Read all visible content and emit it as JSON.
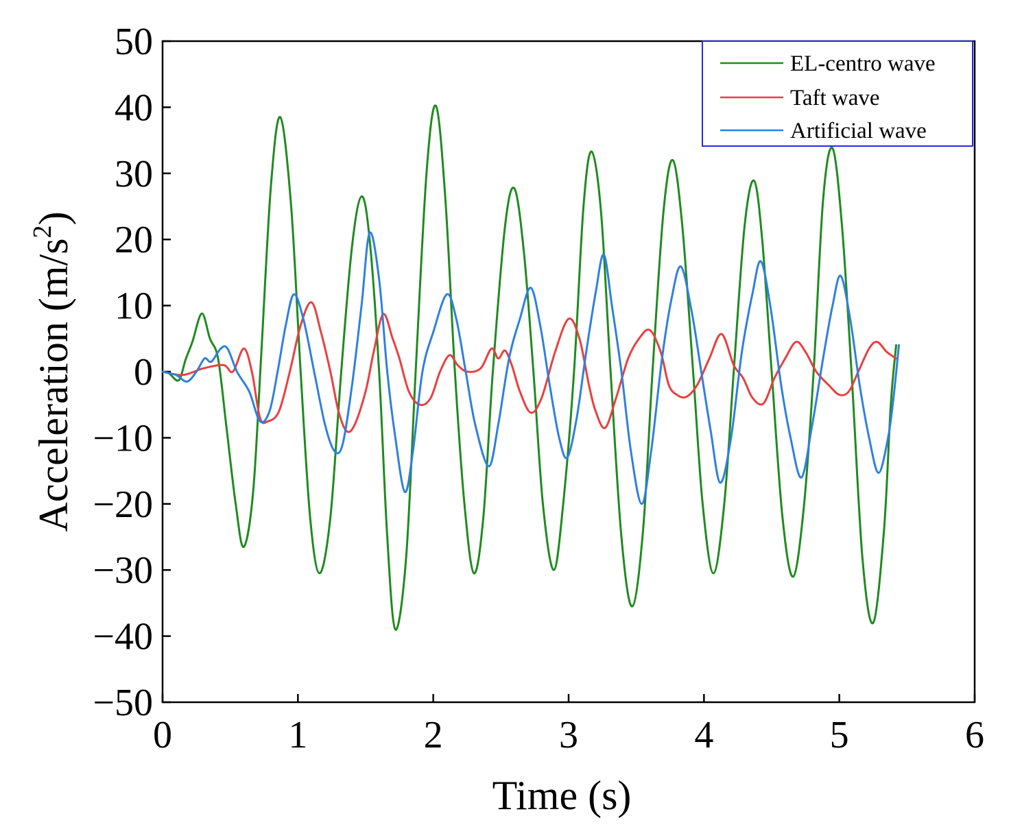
{
  "chart_data": {
    "type": "line",
    "title": "",
    "xlabel": "Time (s)",
    "ylabel_main": "Acceleration (m/s",
    "ylabel_sup": "2",
    "ylabel_close": ")",
    "xlim": [
      0,
      6
    ],
    "ylim": [
      -50,
      50
    ],
    "xticks": [
      0,
      1,
      2,
      3,
      4,
      5,
      6
    ],
    "yticks": [
      -50,
      -40,
      -30,
      -20,
      -10,
      0,
      10,
      20,
      30,
      40,
      50
    ],
    "grid": false,
    "legend_position": "top-right",
    "series": [
      {
        "name": "EL-centro wave",
        "color": "#1f8a1f",
        "points": [
          [
            0,
            0
          ],
          [
            0.05,
            -0.3
          ],
          [
            0.12,
            -1.3
          ],
          [
            0.17,
            1.8
          ],
          [
            0.22,
            4.5
          ],
          [
            0.29,
            8.8
          ],
          [
            0.35,
            5
          ],
          [
            0.41,
            2
          ],
          [
            0.47,
            -8
          ],
          [
            0.54,
            -20
          ],
          [
            0.6,
            -26.5
          ],
          [
            0.67,
            -18
          ],
          [
            0.73,
            3
          ],
          [
            0.8,
            28
          ],
          [
            0.87,
            38.5
          ],
          [
            0.95,
            25
          ],
          [
            1.02,
            0
          ],
          [
            1.09,
            -22
          ],
          [
            1.16,
            -30.5
          ],
          [
            1.24,
            -22
          ],
          [
            1.32,
            0
          ],
          [
            1.4,
            19
          ],
          [
            1.47,
            26.5
          ],
          [
            1.53,
            20
          ],
          [
            1.6,
            0
          ],
          [
            1.66,
            -25
          ],
          [
            1.72,
            -39
          ],
          [
            1.8,
            -28
          ],
          [
            1.87,
            0
          ],
          [
            1.95,
            30
          ],
          [
            2.02,
            40.2
          ],
          [
            2.09,
            26
          ],
          [
            2.16,
            0
          ],
          [
            2.23,
            -20
          ],
          [
            2.3,
            -30.5
          ],
          [
            2.37,
            -22
          ],
          [
            2.44,
            0
          ],
          [
            2.53,
            22
          ],
          [
            2.6,
            27.7
          ],
          [
            2.67,
            18
          ],
          [
            2.74,
            0
          ],
          [
            2.81,
            -20
          ],
          [
            2.89,
            -30
          ],
          [
            2.96,
            -20
          ],
          [
            3.04,
            0
          ],
          [
            3.11,
            25
          ],
          [
            3.17,
            33.3
          ],
          [
            3.24,
            24
          ],
          [
            3.31,
            0
          ],
          [
            3.39,
            -25
          ],
          [
            3.47,
            -35.5
          ],
          [
            3.55,
            -24
          ],
          [
            3.62,
            0
          ],
          [
            3.7,
            24
          ],
          [
            3.77,
            32
          ],
          [
            3.84,
            22
          ],
          [
            3.92,
            0
          ],
          [
            3.99,
            -20
          ],
          [
            4.07,
            -30.5
          ],
          [
            4.15,
            -20
          ],
          [
            4.22,
            0
          ],
          [
            4.3,
            22
          ],
          [
            4.37,
            28.9
          ],
          [
            4.43,
            20
          ],
          [
            4.5,
            0
          ],
          [
            4.58,
            -22
          ],
          [
            4.66,
            -31
          ],
          [
            4.74,
            -20
          ],
          [
            4.81,
            0
          ],
          [
            4.88,
            26
          ],
          [
            4.95,
            33.8
          ],
          [
            5.02,
            22
          ],
          [
            5.09,
            0
          ],
          [
            5.17,
            -28
          ],
          [
            5.25,
            -38
          ],
          [
            5.33,
            -24
          ],
          [
            5.38,
            -5
          ],
          [
            5.42,
            4
          ]
        ]
      },
      {
        "name": "Taft wave",
        "color": "#e8403f",
        "points": [
          [
            0,
            0
          ],
          [
            0.15,
            -0.5
          ],
          [
            0.3,
            0.5
          ],
          [
            0.45,
            1
          ],
          [
            0.52,
            0
          ],
          [
            0.6,
            3.5
          ],
          [
            0.66,
            0
          ],
          [
            0.72,
            -7
          ],
          [
            0.78,
            -7.5
          ],
          [
            0.86,
            -6
          ],
          [
            0.94,
            0
          ],
          [
            1.02,
            7
          ],
          [
            1.1,
            10.5
          ],
          [
            1.17,
            6
          ],
          [
            1.24,
            0
          ],
          [
            1.3,
            -6
          ],
          [
            1.36,
            -9
          ],
          [
            1.42,
            -8
          ],
          [
            1.5,
            -3
          ],
          [
            1.56,
            3
          ],
          [
            1.63,
            8.7
          ],
          [
            1.7,
            5
          ],
          [
            1.75,
            2
          ],
          [
            1.82,
            -3
          ],
          [
            1.9,
            -5
          ],
          [
            1.98,
            -4
          ],
          [
            2.05,
            0
          ],
          [
            2.12,
            2.5
          ],
          [
            2.18,
            1
          ],
          [
            2.25,
            0
          ],
          [
            2.35,
            0.5
          ],
          [
            2.43,
            3.5
          ],
          [
            2.48,
            2
          ],
          [
            2.53,
            3.2
          ],
          [
            2.58,
            1
          ],
          [
            2.64,
            -3
          ],
          [
            2.72,
            -6.2
          ],
          [
            2.8,
            -4
          ],
          [
            2.9,
            3
          ],
          [
            3.0,
            8
          ],
          [
            3.08,
            5
          ],
          [
            3.15,
            -2
          ],
          [
            3.2,
            -6
          ],
          [
            3.27,
            -8.5
          ],
          [
            3.35,
            -4
          ],
          [
            3.44,
            2
          ],
          [
            3.52,
            5
          ],
          [
            3.6,
            6.3
          ],
          [
            3.68,
            3
          ],
          [
            3.74,
            -2
          ],
          [
            3.8,
            -3.5
          ],
          [
            3.87,
            -3.8
          ],
          [
            3.95,
            -2
          ],
          [
            4.04,
            2
          ],
          [
            4.13,
            5.7
          ],
          [
            4.22,
            1
          ],
          [
            4.29,
            -1
          ],
          [
            4.36,
            -4
          ],
          [
            4.44,
            -4.8
          ],
          [
            4.52,
            -1
          ],
          [
            4.6,
            2
          ],
          [
            4.68,
            4.5
          ],
          [
            4.75,
            3
          ],
          [
            4.83,
            0
          ],
          [
            4.92,
            -2
          ],
          [
            5.0,
            -3.5
          ],
          [
            5.07,
            -3
          ],
          [
            5.14,
            0
          ],
          [
            5.22,
            3.5
          ],
          [
            5.28,
            4.5
          ],
          [
            5.35,
            3
          ],
          [
            5.42,
            2
          ]
        ]
      },
      {
        "name": "Artificial wave",
        "color": "#2f7fe0",
        "points": [
          [
            0,
            0
          ],
          [
            0.1,
            -0.5
          ],
          [
            0.18,
            -1.5
          ],
          [
            0.25,
            0
          ],
          [
            0.31,
            2
          ],
          [
            0.36,
            1.5
          ],
          [
            0.43,
            3.5
          ],
          [
            0.48,
            3.5
          ],
          [
            0.55,
            0
          ],
          [
            0.64,
            -3
          ],
          [
            0.72,
            -7.5
          ],
          [
            0.79,
            -6
          ],
          [
            0.85,
            0
          ],
          [
            0.91,
            7
          ],
          [
            0.97,
            11.7
          ],
          [
            1.04,
            8
          ],
          [
            1.12,
            0
          ],
          [
            1.2,
            -8
          ],
          [
            1.27,
            -12
          ],
          [
            1.33,
            -11
          ],
          [
            1.4,
            -2
          ],
          [
            1.47,
            10
          ],
          [
            1.53,
            21
          ],
          [
            1.6,
            14
          ],
          [
            1.66,
            0
          ],
          [
            1.72,
            -10
          ],
          [
            1.79,
            -18.2
          ],
          [
            1.85,
            -12
          ],
          [
            1.92,
            0
          ],
          [
            2.0,
            6
          ],
          [
            2.1,
            11.7
          ],
          [
            2.17,
            8
          ],
          [
            2.24,
            0
          ],
          [
            2.31,
            -8
          ],
          [
            2.41,
            -14.3
          ],
          [
            2.48,
            -8
          ],
          [
            2.56,
            2
          ],
          [
            2.64,
            8
          ],
          [
            2.72,
            12.7
          ],
          [
            2.79,
            7
          ],
          [
            2.86,
            -2
          ],
          [
            2.93,
            -10
          ],
          [
            2.99,
            -13
          ],
          [
            3.06,
            -7
          ],
          [
            3.13,
            3
          ],
          [
            3.2,
            12
          ],
          [
            3.26,
            17.7
          ],
          [
            3.32,
            10
          ],
          [
            3.39,
            0
          ],
          [
            3.46,
            -12
          ],
          [
            3.54,
            -20
          ],
          [
            3.61,
            -12
          ],
          [
            3.69,
            2
          ],
          [
            3.76,
            11
          ],
          [
            3.83,
            15.9
          ],
          [
            3.91,
            9
          ],
          [
            3.98,
            0
          ],
          [
            4.05,
            -9
          ],
          [
            4.12,
            -16.8
          ],
          [
            4.2,
            -10
          ],
          [
            4.28,
            3
          ],
          [
            4.36,
            12
          ],
          [
            4.42,
            16.7
          ],
          [
            4.49,
            10
          ],
          [
            4.57,
            -2
          ],
          [
            4.64,
            -10
          ],
          [
            4.72,
            -16
          ],
          [
            4.8,
            -8
          ],
          [
            4.88,
            2
          ],
          [
            4.95,
            10
          ],
          [
            5.01,
            14.5
          ],
          [
            5.08,
            8
          ],
          [
            5.15,
            -2
          ],
          [
            5.22,
            -10
          ],
          [
            5.29,
            -15.3
          ],
          [
            5.36,
            -10
          ],
          [
            5.4,
            -4
          ],
          [
            5.44,
            4
          ]
        ]
      }
    ]
  }
}
